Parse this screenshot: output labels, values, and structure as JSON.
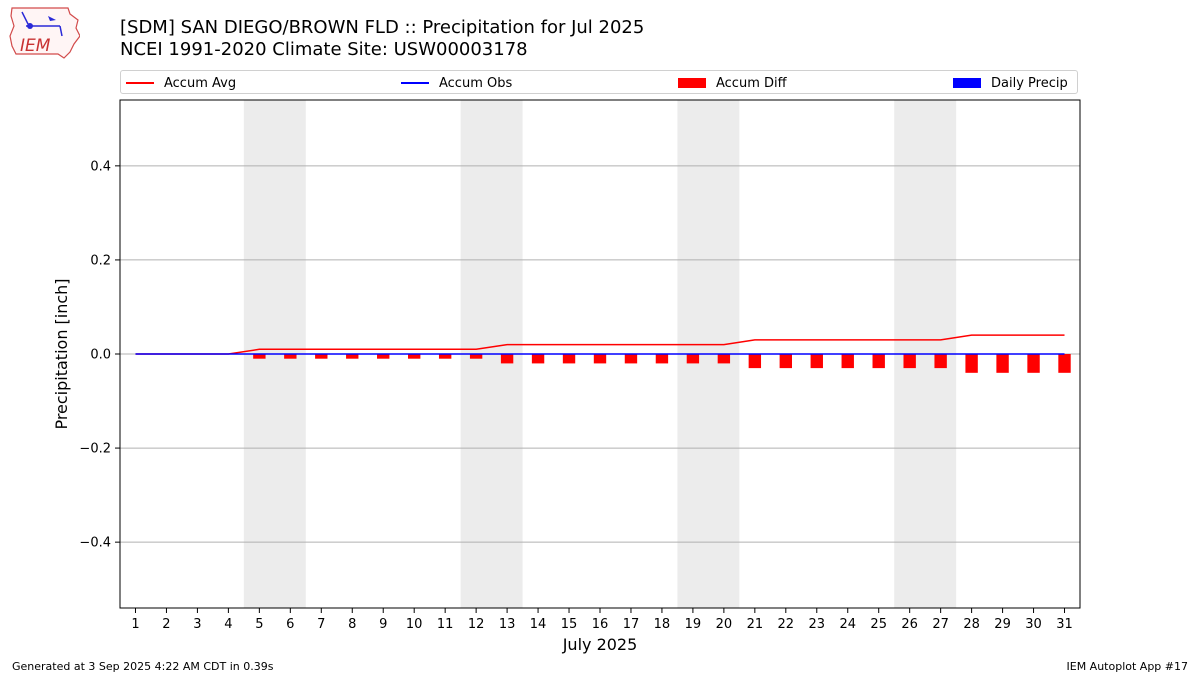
{
  "header": {
    "line1": "[SDM] SAN DIEGO/BROWN FLD :: Precipitation for Jul 2025",
    "line2": "NCEI 1991-2020 Climate Site: USW00003178",
    "logo_text": "IEM"
  },
  "legend": [
    {
      "label": "Accum Avg",
      "color": "#ff0000",
      "kind": "line"
    },
    {
      "label": "Accum Obs",
      "color": "#0000ff",
      "kind": "line"
    },
    {
      "label": "Accum Diff",
      "color": "#ff0000",
      "kind": "box"
    },
    {
      "label": "Daily Precip",
      "color": "#0000ff",
      "kind": "box"
    }
  ],
  "footer": {
    "generated": "Generated at 3 Sep 2025 4:22 AM CDT in 0.39s",
    "app": "IEM Autoplot App #17"
  },
  "chart_data": {
    "type": "bar",
    "xlabel": "July 2025",
    "ylabel": "Precipitation [inch]",
    "xlim": [
      0.5,
      31.5
    ],
    "ylim": [
      -0.54,
      0.54
    ],
    "yticks": [
      -0.4,
      -0.2,
      0.0,
      0.2,
      0.4
    ],
    "ytick_labels": [
      "−0.4",
      "−0.2",
      "0.0",
      "0.2",
      "0.4"
    ],
    "x": [
      1,
      2,
      3,
      4,
      5,
      6,
      7,
      8,
      9,
      10,
      11,
      12,
      13,
      14,
      15,
      16,
      17,
      18,
      19,
      20,
      21,
      22,
      23,
      24,
      25,
      26,
      27,
      28,
      29,
      30,
      31
    ],
    "x_tick_labels": [
      "1",
      "2",
      "3",
      "4",
      "5",
      "6",
      "7",
      "8",
      "9",
      "10",
      "11",
      "12",
      "13",
      "14",
      "15",
      "16",
      "17",
      "18",
      "19",
      "20",
      "21",
      "22",
      "23",
      "24",
      "25",
      "26",
      "27",
      "28",
      "29",
      "30",
      "31"
    ],
    "weekend_spans": [
      [
        5,
        6
      ],
      [
        12,
        13
      ],
      [
        19,
        20
      ],
      [
        26,
        27
      ]
    ],
    "weekend_color": "#ececec",
    "grid": true,
    "series": [
      {
        "name": "Accum Avg",
        "kind": "line",
        "color": "#ff0000",
        "values": [
          0,
          0,
          0,
          0,
          0.01,
          0.01,
          0.01,
          0.01,
          0.01,
          0.01,
          0.01,
          0.01,
          0.02,
          0.02,
          0.02,
          0.02,
          0.02,
          0.02,
          0.02,
          0.02,
          0.03,
          0.03,
          0.03,
          0.03,
          0.03,
          0.03,
          0.03,
          0.04,
          0.04,
          0.04,
          0.04
        ]
      },
      {
        "name": "Accum Obs",
        "kind": "line",
        "color": "#0000ff",
        "values": [
          0,
          0,
          0,
          0,
          0,
          0,
          0,
          0,
          0,
          0,
          0,
          0,
          0,
          0,
          0,
          0,
          0,
          0,
          0,
          0,
          0,
          0,
          0,
          0,
          0,
          0,
          0,
          0,
          0,
          0,
          0
        ]
      },
      {
        "name": "Accum Diff",
        "kind": "bar",
        "color": "#ff0000",
        "values": [
          0,
          0,
          0,
          0,
          -0.01,
          -0.01,
          -0.01,
          -0.01,
          -0.01,
          -0.01,
          -0.01,
          -0.01,
          -0.02,
          -0.02,
          -0.02,
          -0.02,
          -0.02,
          -0.02,
          -0.02,
          -0.02,
          -0.03,
          -0.03,
          -0.03,
          -0.03,
          -0.03,
          -0.03,
          -0.03,
          -0.04,
          -0.04,
          -0.04,
          -0.04
        ]
      },
      {
        "name": "Daily Precip",
        "kind": "bar",
        "color": "#0000ff",
        "values": [
          0,
          0,
          0,
          0,
          0,
          0,
          0,
          0,
          0,
          0,
          0,
          0,
          0,
          0,
          0,
          0,
          0,
          0,
          0,
          0,
          0,
          0,
          0,
          0,
          0,
          0,
          0,
          0,
          0,
          0,
          0
        ]
      }
    ]
  }
}
